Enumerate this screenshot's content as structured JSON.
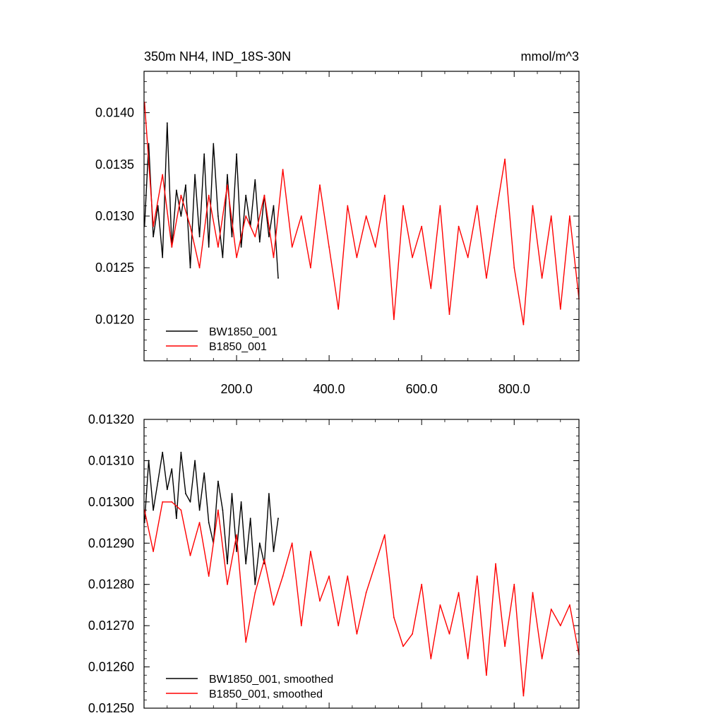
{
  "colors": {
    "series_a": "#000000",
    "series_b": "#ff0000",
    "frame": "#000000",
    "background": "#ffffff"
  },
  "chart_data": [
    {
      "type": "line",
      "title": "350m NH4, IND_18S-30N",
      "units_label": "mmol/m^3",
      "xlabel": "",
      "ylabel": "",
      "xlim": [
        0,
        940
      ],
      "ylim": [
        0.0116,
        0.0144
      ],
      "x_ticks": [
        200,
        400,
        600,
        800
      ],
      "x_tick_labels": [
        "200.0",
        "400.0",
        "600.0",
        "800.0"
      ],
      "y_ticks": [
        0.012,
        0.0125,
        0.013,
        0.0135,
        0.014
      ],
      "y_tick_labels": [
        "0.0120",
        "0.0125",
        "0.0130",
        "0.0135",
        "0.0140"
      ],
      "grid": false,
      "legend_position": "bottom-left",
      "series": [
        {
          "name": "BW1850_001",
          "color": "#000000",
          "x": [
            1,
            10,
            20,
            30,
            40,
            50,
            60,
            70,
            80,
            90,
            100,
            110,
            120,
            130,
            140,
            150,
            160,
            170,
            180,
            190,
            200,
            210,
            220,
            230,
            240,
            250,
            260,
            270,
            280,
            290
          ],
          "values": [
            0.0129,
            0.0137,
            0.0128,
            0.0131,
            0.0126,
            0.0139,
            0.0127,
            0.01325,
            0.013,
            0.0133,
            0.0125,
            0.0134,
            0.0128,
            0.0136,
            0.0127,
            0.0137,
            0.013,
            0.0126,
            0.0134,
            0.0128,
            0.0136,
            0.0127,
            0.0132,
            0.0129,
            0.01335,
            0.01275,
            0.0132,
            0.0128,
            0.0131,
            0.0124
          ]
        },
        {
          "name": "B1850_001",
          "color": "#ff0000",
          "x": [
            1,
            20,
            40,
            60,
            80,
            100,
            120,
            140,
            160,
            180,
            200,
            220,
            240,
            260,
            280,
            300,
            320,
            340,
            360,
            380,
            400,
            420,
            440,
            460,
            480,
            500,
            520,
            540,
            560,
            580,
            600,
            620,
            640,
            660,
            680,
            700,
            720,
            740,
            760,
            780,
            800,
            820,
            840,
            860,
            880,
            900,
            920,
            940
          ],
          "values": [
            0.0141,
            0.0129,
            0.0134,
            0.0127,
            0.0132,
            0.0129,
            0.0125,
            0.0132,
            0.0127,
            0.0133,
            0.0126,
            0.013,
            0.0128,
            0.0132,
            0.0126,
            0.01345,
            0.0127,
            0.013,
            0.0125,
            0.0133,
            0.0127,
            0.0121,
            0.0131,
            0.0126,
            0.013,
            0.0127,
            0.0132,
            0.012,
            0.0131,
            0.0126,
            0.0129,
            0.0123,
            0.0131,
            0.01205,
            0.0129,
            0.0126,
            0.0131,
            0.0124,
            0.013,
            0.01355,
            0.0125,
            0.01195,
            0.0131,
            0.0124,
            0.013,
            0.0121,
            0.013,
            0.0122
          ]
        }
      ]
    },
    {
      "type": "line",
      "title": "",
      "xlabel": "",
      "ylabel": "",
      "xlim": [
        0,
        940
      ],
      "ylim": [
        0.0125,
        0.0132
      ],
      "y_ticks": [
        0.0125,
        0.0126,
        0.0127,
        0.0128,
        0.0129,
        0.013,
        0.0131,
        0.0132
      ],
      "y_tick_labels": [
        "0.01250",
        "0.01260",
        "0.01270",
        "0.01280",
        "0.01290",
        "0.01300",
        "0.01310",
        "0.01320"
      ],
      "grid": false,
      "legend_position": "bottom-left",
      "series": [
        {
          "name": "BW1850_001, smoothed",
          "color": "#000000",
          "x": [
            1,
            10,
            20,
            30,
            40,
            50,
            60,
            70,
            80,
            90,
            100,
            110,
            120,
            130,
            140,
            150,
            160,
            170,
            180,
            190,
            200,
            210,
            220,
            230,
            240,
            250,
            260,
            270,
            280,
            290
          ],
          "values": [
            0.01295,
            0.0131,
            0.01298,
            0.01305,
            0.01312,
            0.01303,
            0.01308,
            0.01296,
            0.01312,
            0.01302,
            0.013,
            0.0131,
            0.01298,
            0.01307,
            0.01295,
            0.0129,
            0.01305,
            0.01298,
            0.01285,
            0.01302,
            0.01288,
            0.013,
            0.01285,
            0.01296,
            0.0128,
            0.0129,
            0.01285,
            0.01302,
            0.01288,
            0.01296
          ]
        },
        {
          "name": "B1850_001, smoothed",
          "color": "#ff0000",
          "x": [
            1,
            20,
            40,
            60,
            80,
            100,
            120,
            140,
            160,
            180,
            200,
            220,
            240,
            260,
            280,
            300,
            320,
            340,
            360,
            380,
            400,
            420,
            440,
            460,
            480,
            500,
            520,
            540,
            560,
            580,
            600,
            620,
            640,
            660,
            680,
            700,
            720,
            740,
            760,
            780,
            800,
            820,
            840,
            860,
            880,
            900,
            920,
            940
          ],
          "values": [
            0.01298,
            0.01288,
            0.013,
            0.013,
            0.01298,
            0.01287,
            0.01295,
            0.01282,
            0.01298,
            0.0128,
            0.01292,
            0.01266,
            0.01278,
            0.01286,
            0.01275,
            0.01282,
            0.0129,
            0.0127,
            0.01288,
            0.01276,
            0.01282,
            0.0127,
            0.01282,
            0.01268,
            0.01278,
            0.01285,
            0.01292,
            0.01272,
            0.01265,
            0.01268,
            0.0128,
            0.01262,
            0.01275,
            0.01268,
            0.01278,
            0.01262,
            0.01282,
            0.01258,
            0.01285,
            0.01265,
            0.0128,
            0.01253,
            0.01278,
            0.01262,
            0.01274,
            0.0127,
            0.01275,
            0.01263
          ]
        }
      ]
    }
  ]
}
